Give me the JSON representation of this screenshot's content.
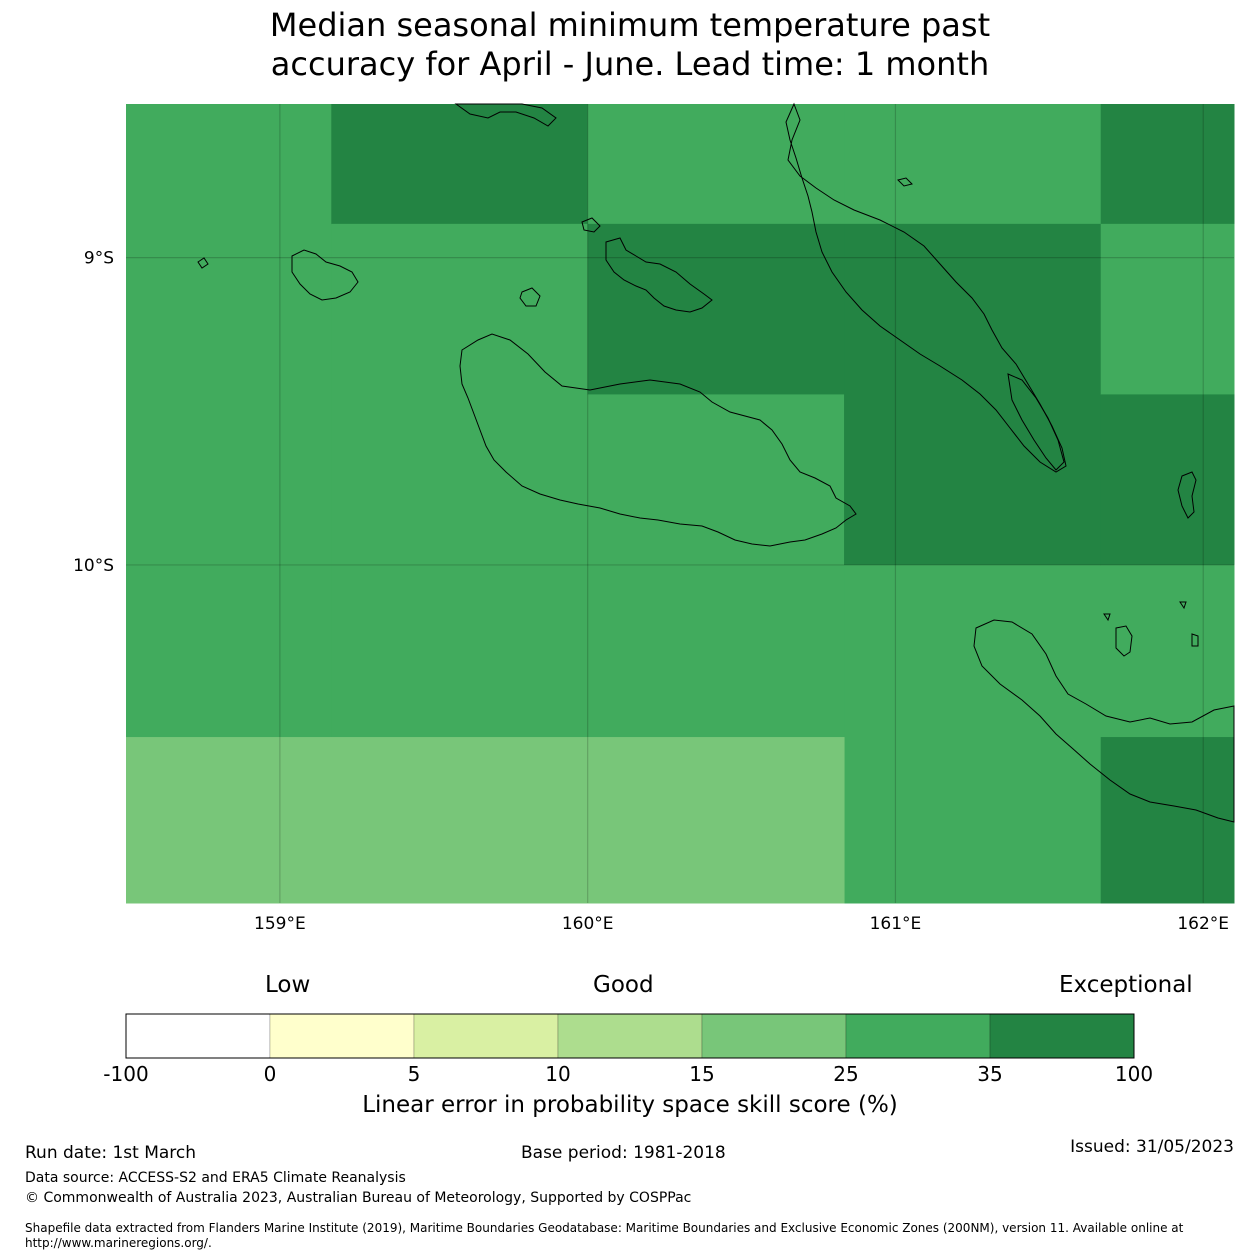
{
  "title_line1": "Median seasonal minimum temperature past",
  "title_line2": "accuracy for April - June. Lead time: 1 month",
  "map": {
    "extent": {
      "lon_min": 158.5,
      "lon_max": 162.1,
      "lat_min": -11.1,
      "lat_max": -8.5
    },
    "lon_ticks": [
      {
        "value": 159,
        "label": "159°E"
      },
      {
        "value": 160,
        "label": "160°E"
      },
      {
        "value": 161,
        "label": "161°E"
      },
      {
        "value": 162,
        "label": "162°E"
      }
    ],
    "lat_ticks": [
      {
        "value": -9,
        "label": "9°S"
      },
      {
        "value": -10,
        "label": "10°S"
      }
    ],
    "gridlines": true,
    "cells": [
      {
        "lon": [
          158.5,
          159.167
        ],
        "lat": [
          -8.5,
          -10.56
        ],
        "bin": 5
      },
      {
        "lon": [
          159.167,
          160.0
        ],
        "lat": [
          -8.5,
          -8.89
        ],
        "bin": 6
      },
      {
        "lon": [
          159.167,
          160.0
        ],
        "lat": [
          -8.89,
          -10.56
        ],
        "bin": 5
      },
      {
        "lon": [
          160.0,
          160.833
        ],
        "lat": [
          -8.5,
          -8.89
        ],
        "bin": 5
      },
      {
        "lon": [
          160.0,
          160.833
        ],
        "lat": [
          -8.89,
          -9.445
        ],
        "bin": 6
      },
      {
        "lon": [
          160.0,
          160.833
        ],
        "lat": [
          -9.445,
          -10.56
        ],
        "bin": 5
      },
      {
        "lon": [
          160.833,
          161.667
        ],
        "lat": [
          -8.5,
          -8.89
        ],
        "bin": 5
      },
      {
        "lon": [
          160.833,
          161.667
        ],
        "lat": [
          -8.89,
          -10.0
        ],
        "bin": 6
      },
      {
        "lon": [
          160.833,
          161.667
        ],
        "lat": [
          -10.0,
          -11.1
        ],
        "bin": 5
      },
      {
        "lon": [
          161.667,
          162.1
        ],
        "lat": [
          -8.5,
          -8.89
        ],
        "bin": 6
      },
      {
        "lon": [
          161.667,
          162.1
        ],
        "lat": [
          -8.89,
          -9.445
        ],
        "bin": 5
      },
      {
        "lon": [
          161.667,
          162.1
        ],
        "lat": [
          -9.445,
          -10.0
        ],
        "bin": 6
      },
      {
        "lon": [
          161.667,
          162.1
        ],
        "lat": [
          -10.0,
          -10.56
        ],
        "bin": 5
      },
      {
        "lon": [
          161.667,
          162.1
        ],
        "lat": [
          -10.56,
          -11.1
        ],
        "bin": 6
      },
      {
        "lon": [
          158.5,
          160.833
        ],
        "lat": [
          -10.56,
          -11.1
        ],
        "bin": 4
      }
    ]
  },
  "colorbar": {
    "categories": [
      "Low",
      "Good",
      "Exceptional"
    ],
    "bounds": [
      "-100",
      "0",
      "5",
      "10",
      "15",
      "25",
      "35",
      "100"
    ],
    "colors": [
      "#ffffff",
      "#ffffcc",
      "#d9f0a3",
      "#addd8e",
      "#78c679",
      "#41ab5d",
      "#238443"
    ],
    "label": "Linear error in probability space skill score (%)"
  },
  "footer": {
    "run_date": "Run date: 1st March",
    "base_period": "Base period: 1981-2018",
    "issued": "Issued: 31/05/2023",
    "data_source": "Data source: ACCESS-S2 and ERA5 Climate Reanalysis",
    "copyright": "© Commonwealth of Australia 2023, Australian Bureau of Meteorology, Supported by COSPPac",
    "shapefile": "Shapefile data extracted from Flanders Marine Institute (2019), Maritime Boundaries Geodatabase: Maritime Boundaries and Exclusive Economic Zones (200NM), version 11. Available online at http://www.marineregions.org/."
  }
}
